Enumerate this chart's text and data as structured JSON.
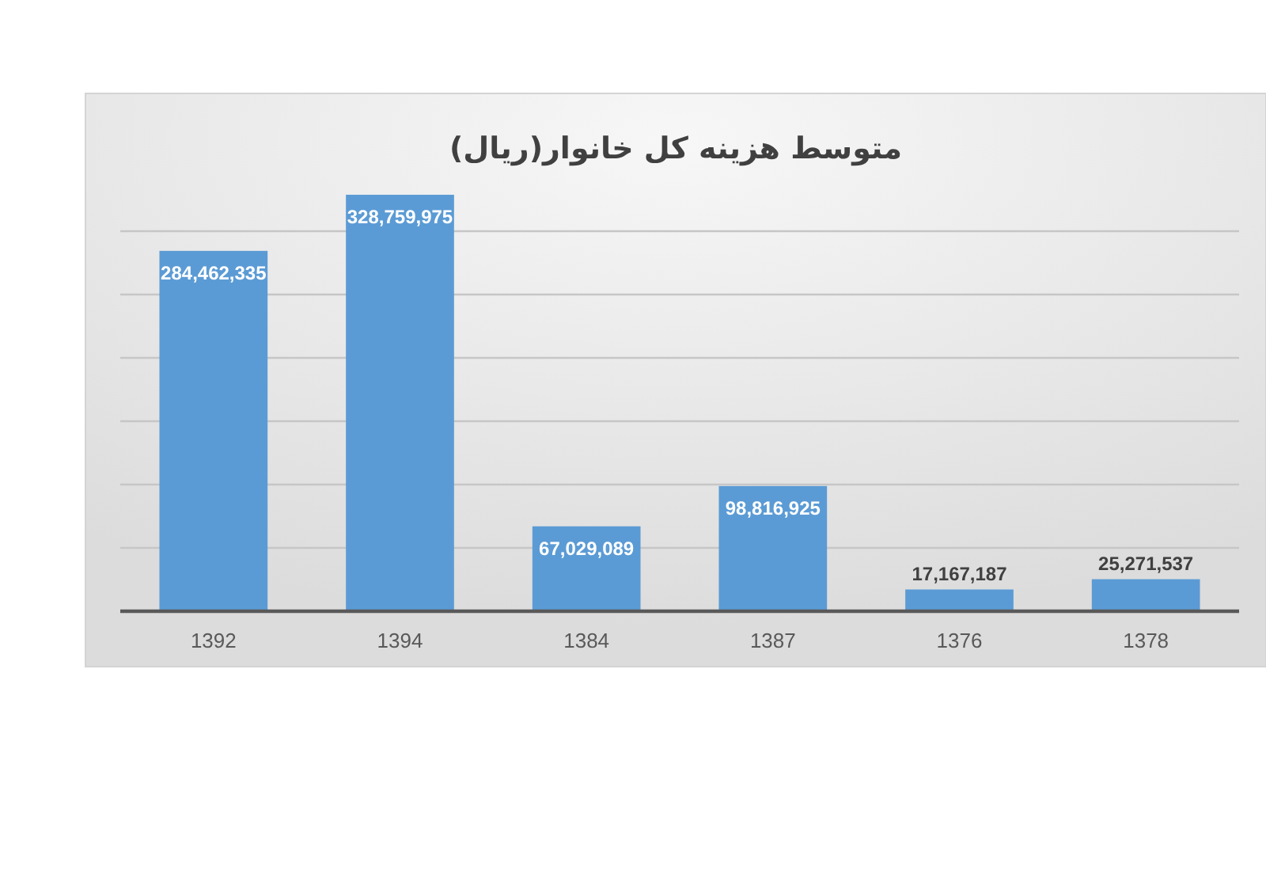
{
  "chart_data": {
    "type": "bar",
    "title": "متوسط هزینه کل خانوار(ریال)",
    "categories": [
      "1392",
      "1394",
      "1384",
      "1387",
      "1376",
      "1378"
    ],
    "values": [
      284462335,
      328759975,
      67029089,
      98816925,
      17167187,
      25271537
    ],
    "value_labels": [
      "284,462,335",
      "328,759,975",
      "67,029,089",
      "98,816,925",
      "17,167,187",
      "25,271,537"
    ],
    "color": "#5b9bd5",
    "grid": true
  }
}
